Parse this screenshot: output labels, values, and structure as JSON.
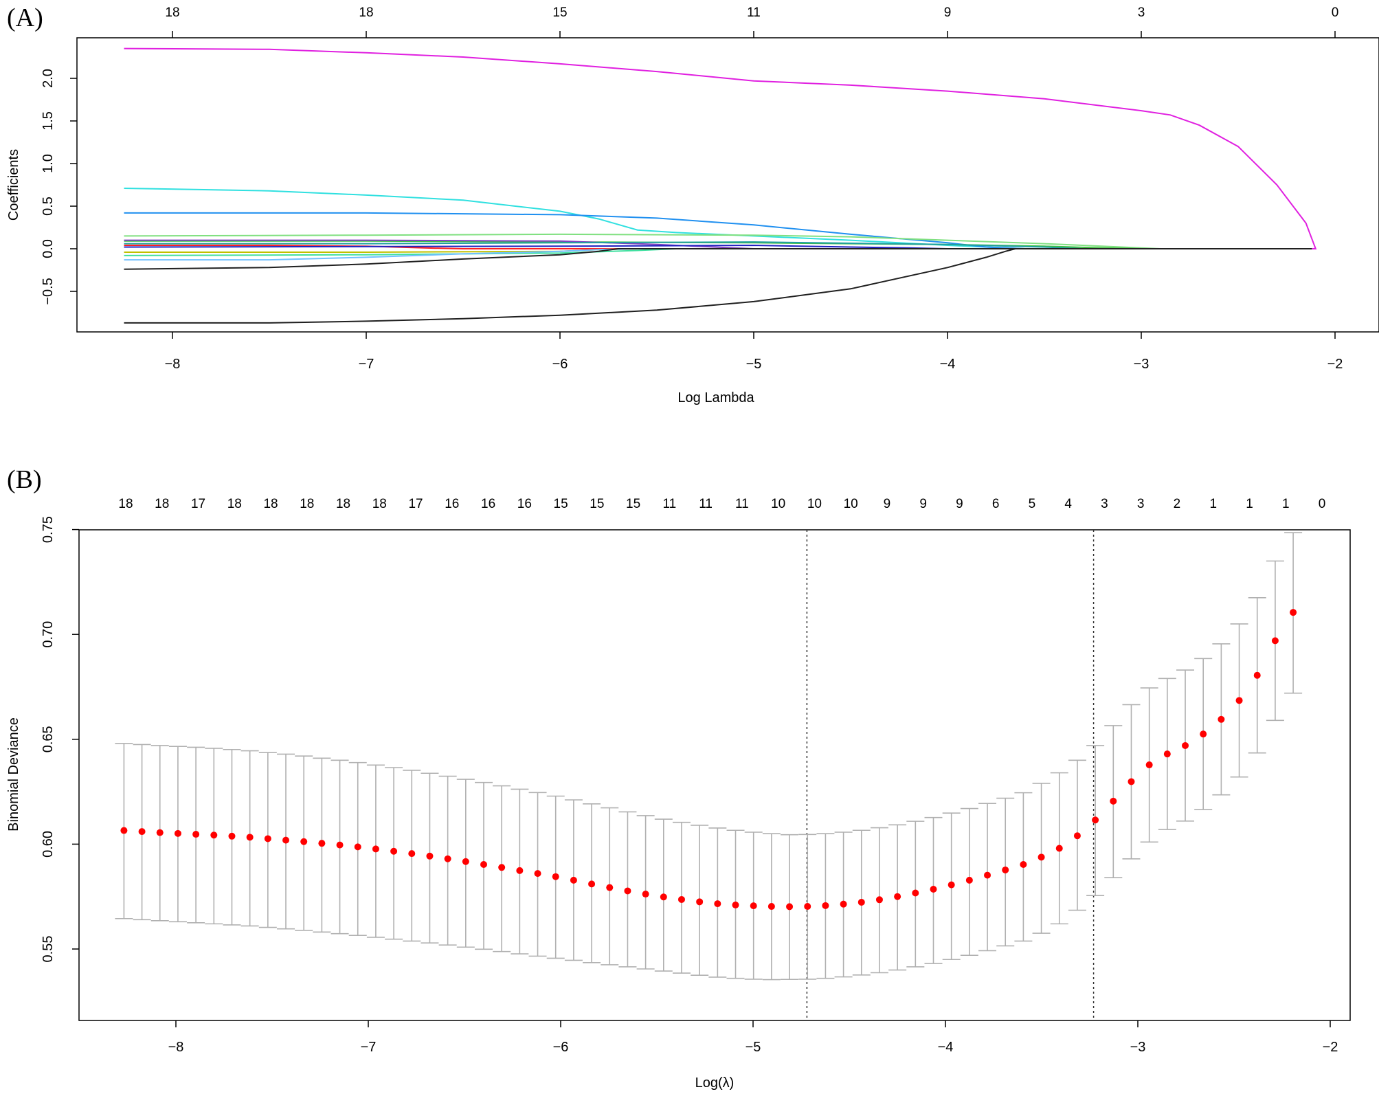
{
  "chart_data": [
    {
      "panel_label": "(A)",
      "type": "line",
      "xlabel": "Log Lambda",
      "ylabel": "Coefficients",
      "xlim": [
        -8.5,
        -1.95
      ],
      "ylim": [
        -1.0,
        2.5
      ],
      "x_ticks": [
        -8,
        -7,
        -6,
        -5,
        -4,
        -3,
        -2
      ],
      "x_tick_labels": [
        "−8",
        "−7",
        "−6",
        "−5",
        "−4",
        "−3",
        "−2"
      ],
      "y_ticks": [
        -0.5,
        0.0,
        0.5,
        1.0,
        1.5,
        2.0
      ],
      "y_tick_labels": [
        "−0.5",
        "0.0",
        "0.5",
        "1.0",
        "1.5",
        "2.0"
      ],
      "top_axis": {
        "positions": [
          -8,
          -7,
          -6,
          -5,
          -4,
          -3,
          -2
        ],
        "labels": [
          "18",
          "18",
          "15",
          "11",
          "9",
          "3",
          "0"
        ]
      },
      "series": [
        {
          "color": "#e020e0",
          "x": [
            -8.25,
            -7.5,
            -7,
            -6.5,
            -6,
            -5.5,
            -5,
            -4.5,
            -4,
            -3.5,
            -3,
            -2.85,
            -2.7,
            -2.5,
            -2.3,
            -2.15,
            -2.1
          ],
          "y": [
            2.35,
            2.34,
            2.3,
            2.25,
            2.17,
            2.08,
            1.97,
            1.92,
            1.85,
            1.76,
            1.62,
            1.57,
            1.45,
            1.2,
            0.75,
            0.3,
            0.0
          ]
        },
        {
          "color": "#30e0e0",
          "x": [
            -8.25,
            -7.5,
            -7,
            -6.5,
            -6,
            -5.8,
            -5.6,
            -5.4,
            -5,
            -4.5,
            -4,
            -3.6
          ],
          "y": [
            0.71,
            0.68,
            0.63,
            0.57,
            0.44,
            0.35,
            0.22,
            0.19,
            0.15,
            0.1,
            0.04,
            0.0
          ]
        },
        {
          "color": "#2090f0",
          "x": [
            -8.25,
            -7,
            -6,
            -5.5,
            -5,
            -4.5,
            -4,
            -3.8,
            -3.6
          ],
          "y": [
            0.42,
            0.42,
            0.4,
            0.36,
            0.28,
            0.17,
            0.07,
            0.02,
            0.0
          ]
        },
        {
          "color": "#80e080",
          "x": [
            -8.25,
            -7,
            -6,
            -5,
            -4.5,
            -4,
            -3.5,
            -3,
            -2.9
          ],
          "y": [
            0.15,
            0.16,
            0.17,
            0.16,
            0.14,
            0.1,
            0.06,
            0.01,
            0.0
          ]
        },
        {
          "color": "#40c040",
          "x": [
            -8.25,
            -7,
            -6,
            -5,
            -4.5,
            -4,
            -3.5,
            -3.2,
            -3.0
          ],
          "y": [
            0.09,
            0.09,
            0.08,
            0.07,
            0.06,
            0.05,
            0.03,
            0.01,
            0.0
          ]
        },
        {
          "color": "#8040c0",
          "x": [
            -8.25,
            -7,
            -6,
            -5.5,
            -5.2,
            -5.0
          ],
          "y": [
            0.1,
            0.1,
            0.09,
            0.05,
            0.02,
            0.0
          ]
        },
        {
          "color": "#ff2020",
          "x": [
            -8.25,
            -7.5,
            -7,
            -6.7,
            -6.5
          ],
          "y": [
            0.04,
            0.04,
            0.03,
            0.01,
            0.0
          ]
        },
        {
          "color": "#2020c0",
          "x": [
            -8.25,
            -6,
            -5,
            -4.5,
            -4.2,
            -4.0
          ],
          "y": [
            0.02,
            0.03,
            0.04,
            0.02,
            0.01,
            0.0
          ]
        },
        {
          "color": "#20a0a0",
          "x": [
            -8.25,
            -7,
            -6,
            -5,
            -4,
            -3.5,
            -3.3
          ],
          "y": [
            0.06,
            0.06,
            0.07,
            0.08,
            0.05,
            0.02,
            0.0
          ]
        },
        {
          "color": "#c0c000",
          "x": [
            -8.25,
            -7,
            -6,
            -5.8,
            -5.6
          ],
          "y": [
            -0.04,
            -0.04,
            -0.03,
            -0.01,
            0.0
          ]
        },
        {
          "color": "#40e0a0",
          "x": [
            -8.25,
            -7,
            -6,
            -5.6,
            -5.4
          ],
          "y": [
            -0.08,
            -0.07,
            -0.05,
            -0.02,
            0.0
          ]
        },
        {
          "color": "#70c0ff",
          "x": [
            -8.25,
            -7.5,
            -7,
            -6.5,
            -6,
            -5.8,
            -5.6
          ],
          "y": [
            -0.13,
            -0.13,
            -0.1,
            -0.06,
            -0.03,
            -0.01,
            0.0
          ]
        },
        {
          "color": "#202020",
          "x": [
            -8.25,
            -7.5,
            -7,
            -6.5,
            -6,
            -5.8,
            -5.7
          ],
          "y": [
            -0.24,
            -0.22,
            -0.18,
            -0.12,
            -0.07,
            -0.03,
            0.0
          ]
        },
        {
          "color": "#202020",
          "x": [
            -8.25,
            -7.5,
            -7,
            -6.5,
            -6,
            -5.5,
            -5,
            -4.5,
            -4,
            -3.8,
            -3.7,
            -3.65
          ],
          "y": [
            -0.87,
            -0.87,
            -0.85,
            -0.82,
            -0.78,
            -0.72,
            -0.62,
            -0.47,
            -0.22,
            -0.1,
            -0.03,
            0.0
          ]
        }
      ]
    },
    {
      "panel_label": "(B)",
      "type": "scatter",
      "xlabel": "Log(λ)",
      "ylabel": "Binomial Deviance",
      "xlim": [
        -8.5,
        -1.95
      ],
      "ylim": [
        0.526,
        0.756
      ],
      "x_ticks": [
        -8,
        -7,
        -6,
        -5,
        -4,
        -3,
        -2
      ],
      "x_tick_labels": [
        "−8",
        "−7",
        "−6",
        "−5",
        "−4",
        "−3",
        "−2"
      ],
      "y_ticks": [
        0.55,
        0.6,
        0.65,
        0.7,
        0.75
      ],
      "y_tick_labels": [
        "0.55",
        "0.60",
        "0.65",
        "0.70",
        "0.75"
      ],
      "top_axis": {
        "labels": [
          "18",
          "18",
          "17",
          "18",
          "18",
          "18",
          "18",
          "18",
          "17",
          "16",
          "16",
          "16",
          "15",
          "15",
          "15",
          "11",
          "11",
          "11",
          "10",
          "10",
          "10",
          "9",
          "9",
          "9",
          "6",
          "5",
          "4",
          "3",
          "3",
          "2",
          "1",
          "1",
          "1",
          "0"
        ]
      },
      "vlines": [
        -4.72,
        -3.23
      ],
      "point_color": "#ff0000",
      "errorbar_color": "#b0b0b0",
      "x_start": -8.27,
      "x_step": 0.0935,
      "mean": [
        0.6065,
        0.606,
        0.6055,
        0.6051,
        0.6047,
        0.6043,
        0.6038,
        0.6033,
        0.6026,
        0.6019,
        0.6012,
        0.6004,
        0.5996,
        0.5987,
        0.5977,
        0.5966,
        0.5955,
        0.5943,
        0.593,
        0.5917,
        0.5903,
        0.5889,
        0.5874,
        0.586,
        0.5845,
        0.5828,
        0.581,
        0.5793,
        0.5777,
        0.5762,
        0.5748,
        0.5736,
        0.5725,
        0.5716,
        0.571,
        0.5706,
        0.5703,
        0.5702,
        0.5703,
        0.5707,
        0.5714,
        0.5723,
        0.5735,
        0.575,
        0.5767,
        0.5785,
        0.5806,
        0.5828,
        0.5852,
        0.5877,
        0.5903,
        0.5938,
        0.598,
        0.604,
        0.6115,
        0.6205,
        0.6298,
        0.6378,
        0.643,
        0.647,
        0.6525,
        0.6595,
        0.6685,
        0.6805,
        0.697,
        0.7105
      ],
      "upper": [
        0.648,
        0.6475,
        0.647,
        0.6466,
        0.6462,
        0.6457,
        0.6451,
        0.6445,
        0.6437,
        0.6429,
        0.642,
        0.641,
        0.64,
        0.6389,
        0.6377,
        0.6365,
        0.6352,
        0.6338,
        0.6324,
        0.6309,
        0.6294,
        0.6278,
        0.6262,
        0.6246,
        0.6229,
        0.6211,
        0.6192,
        0.6173,
        0.6154,
        0.6136,
        0.6119,
        0.6104,
        0.609,
        0.6077,
        0.6066,
        0.6057,
        0.605,
        0.6045,
        0.6046,
        0.605,
        0.6057,
        0.6066,
        0.6078,
        0.6092,
        0.6109,
        0.6127,
        0.6148,
        0.617,
        0.6194,
        0.6219,
        0.6245,
        0.629,
        0.634,
        0.64,
        0.647,
        0.6565,
        0.6665,
        0.6745,
        0.679,
        0.683,
        0.6885,
        0.6955,
        0.705,
        0.7175,
        0.735,
        0.7485
      ],
      "lower": [
        0.5645,
        0.564,
        0.5635,
        0.563,
        0.5625,
        0.562,
        0.5615,
        0.561,
        0.5603,
        0.5596,
        0.5589,
        0.5581,
        0.5573,
        0.5565,
        0.5556,
        0.5547,
        0.5538,
        0.5529,
        0.5519,
        0.5509,
        0.5499,
        0.5488,
        0.5477,
        0.5466,
        0.5456,
        0.5446,
        0.5435,
        0.5425,
        0.5415,
        0.5405,
        0.5395,
        0.5385,
        0.5375,
        0.5366,
        0.536,
        0.5356,
        0.5354,
        0.5355,
        0.5356,
        0.536,
        0.5367,
        0.5376,
        0.5387,
        0.54,
        0.5415,
        0.5431,
        0.545,
        0.547,
        0.5492,
        0.5515,
        0.5538,
        0.5575,
        0.562,
        0.5685,
        0.5755,
        0.584,
        0.593,
        0.601,
        0.607,
        0.611,
        0.6165,
        0.6235,
        0.632,
        0.6435,
        0.659,
        0.672
      ]
    }
  ]
}
